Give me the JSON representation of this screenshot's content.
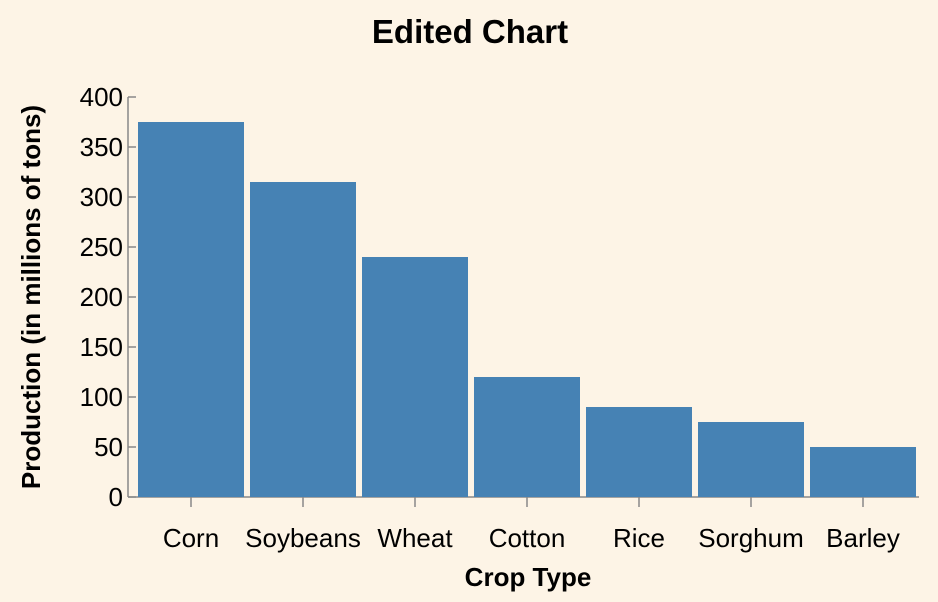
{
  "chart_data": {
    "type": "bar",
    "title": "Edited Chart",
    "xlabel": "Crop Type",
    "ylabel": "Production (in millions of tons)",
    "categories": [
      "Corn",
      "Soybeans",
      "Wheat",
      "Cotton",
      "Rice",
      "Sorghum",
      "Barley"
    ],
    "values": [
      375,
      315,
      240,
      120,
      90,
      75,
      50
    ],
    "ylim": [
      0,
      400
    ],
    "yticks": [
      "0",
      "50",
      "100",
      "150",
      "200",
      "250",
      "300",
      "350",
      "400"
    ],
    "grid": false,
    "bar_color": "#4682b4",
    "background": "#fdf4e6"
  }
}
